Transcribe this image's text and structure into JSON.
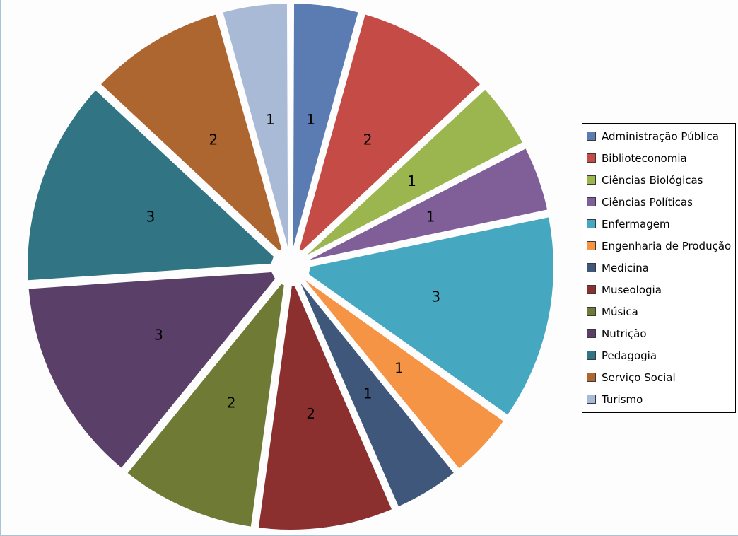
{
  "chart_data": {
    "type": "pie",
    "exploded": true,
    "start": "12 o'clock, clockwise",
    "legend_position": "right",
    "slices": [
      {
        "label": "Administração Pública",
        "value": 1,
        "color": "#5b7bb3"
      },
      {
        "label": "Biblioteconomia",
        "value": 2,
        "color": "#c44b46"
      },
      {
        "label": "Ciências Biológicas",
        "value": 1,
        "color": "#9bb54f"
      },
      {
        "label": "Ciências Políticas",
        "value": 1,
        "color": "#805f99"
      },
      {
        "label": "Enfermagem",
        "value": 3,
        "color": "#45a8c0"
      },
      {
        "label": "Engenharia de Produção",
        "value": 1,
        "color": "#f69446"
      },
      {
        "label": "Medicina",
        "value": 1,
        "color": "#40577c"
      },
      {
        "label": "Museologia",
        "value": 2,
        "color": "#8b2f2f"
      },
      {
        "label": "Música",
        "value": 2,
        "color": "#6f7b35"
      },
      {
        "label": "Nutrição",
        "value": 3,
        "color": "#5a4068"
      },
      {
        "label": "Pedagogia",
        "value": 3,
        "color": "#317585"
      },
      {
        "label": "Serviço Social",
        "value": 2,
        "color": "#ae6631"
      },
      {
        "label": "Turismo",
        "value": 1,
        "color": "#a9bad7"
      }
    ]
  }
}
